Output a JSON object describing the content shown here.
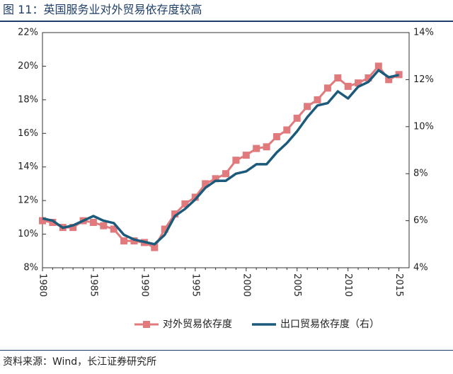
{
  "title": "图 11：英国服务业对外贸易依存度较高",
  "source": "资料来源：Wind，长江证券研究所",
  "colors": {
    "title": "#1f3f68",
    "series_trade": "#e07a7c",
    "series_export": "#1b5a7a"
  },
  "chart_data": {
    "type": "line",
    "title": "英国服务业对外贸易依存度较高",
    "xlabel": "",
    "ylabel_left": "",
    "ylabel_right": "",
    "x": [
      1980,
      1981,
      1982,
      1983,
      1984,
      1985,
      1986,
      1987,
      1988,
      1989,
      1990,
      1991,
      1992,
      1993,
      1994,
      1995,
      1996,
      1997,
      1998,
      1999,
      2000,
      2001,
      2002,
      2003,
      2004,
      2005,
      2006,
      2007,
      2008,
      2009,
      2010,
      2011,
      2012,
      2013,
      2014,
      2015
    ],
    "xlim": [
      1980,
      2016
    ],
    "xticks": [
      1980,
      1985,
      1990,
      1995,
      2000,
      2005,
      2010,
      2015
    ],
    "ylim_left": [
      8,
      22
    ],
    "yticks_left": [
      8,
      10,
      12,
      14,
      16,
      18,
      20,
      22
    ],
    "ytick_labels_left": [
      "8%",
      "10%",
      "12%",
      "14%",
      "16%",
      "18%",
      "20%",
      "22%"
    ],
    "ylim_right": [
      4,
      14
    ],
    "yticks_right": [
      4,
      6,
      8,
      10,
      12,
      14
    ],
    "ytick_labels_right": [
      "4%",
      "6%",
      "8%",
      "10%",
      "12%",
      "14%"
    ],
    "grid": false,
    "legend_position": "bottom",
    "series": [
      {
        "name": "对外贸易依存度",
        "axis": "left",
        "marker": "square",
        "values": [
          10.8,
          10.7,
          10.4,
          10.4,
          10.8,
          10.7,
          10.5,
          10.3,
          9.6,
          9.6,
          9.5,
          9.2,
          10.3,
          11.2,
          11.8,
          12.2,
          13.0,
          13.3,
          13.6,
          14.4,
          14.7,
          15.1,
          15.2,
          15.8,
          16.2,
          16.9,
          17.6,
          18.0,
          18.7,
          19.3,
          18.8,
          19.0,
          19.3,
          20.0,
          19.2,
          19.5
        ]
      },
      {
        "name": "出口贸易依存度（右）",
        "axis": "right",
        "marker": "none",
        "values": [
          6.1,
          6.0,
          5.7,
          5.8,
          6.0,
          6.2,
          6.0,
          5.9,
          5.4,
          5.2,
          5.1,
          5.0,
          5.4,
          6.2,
          6.5,
          6.9,
          7.4,
          7.7,
          7.7,
          8.0,
          8.1,
          8.4,
          8.4,
          8.9,
          9.3,
          9.8,
          10.4,
          10.9,
          11.0,
          11.5,
          11.2,
          11.7,
          11.9,
          12.4,
          12.1,
          12.2
        ]
      }
    ]
  }
}
